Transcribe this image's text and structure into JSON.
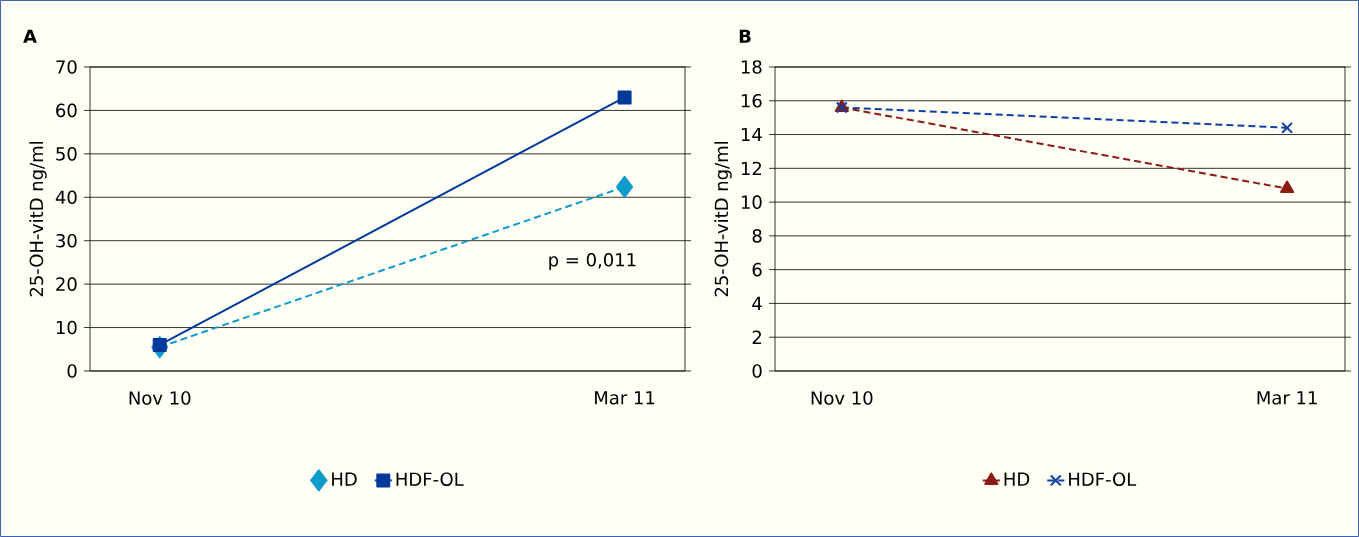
{
  "chart_data": [
    {
      "type": "line",
      "title": "A",
      "ylabel": "25-OH-vitD ng/ml",
      "categories": [
        "Nov 10",
        "Mar 11"
      ],
      "series": [
        {
          "name": "HD",
          "color": "#0f9ccc",
          "values": [
            5.5,
            42.4
          ],
          "marker": "diamond",
          "line_style": "dashed"
        },
        {
          "name": "HDF-OL",
          "color": "#003a9a",
          "values": [
            6,
            63
          ],
          "marker": "square",
          "line_style": "solid"
        }
      ],
      "ylim": [
        0,
        70
      ],
      "yticks": [
        0,
        10,
        20,
        30,
        40,
        50,
        60,
        70
      ],
      "grid": "y",
      "legend": "bottom",
      "annotations": [
        "p = 0,011"
      ]
    },
    {
      "type": "line",
      "title": "B",
      "ylabel": "25-OH-vitD ng/ml",
      "categories": [
        "Nov 10",
        "Mar 11"
      ],
      "series": [
        {
          "name": "HD",
          "color": "#8c1c13",
          "values": [
            15.6,
            10.8
          ],
          "marker": "triangle",
          "line_style": "dashed"
        },
        {
          "name": "HDF-OL",
          "color": "#0d3fa6",
          "values": [
            15.6,
            14.4
          ],
          "marker": "cross",
          "line_style": "dashed"
        }
      ],
      "ylim": [
        0,
        18
      ],
      "yticks": [
        0,
        2,
        4,
        6,
        8,
        10,
        12,
        14,
        16,
        18
      ],
      "grid": "y",
      "legend": "bottom"
    }
  ]
}
